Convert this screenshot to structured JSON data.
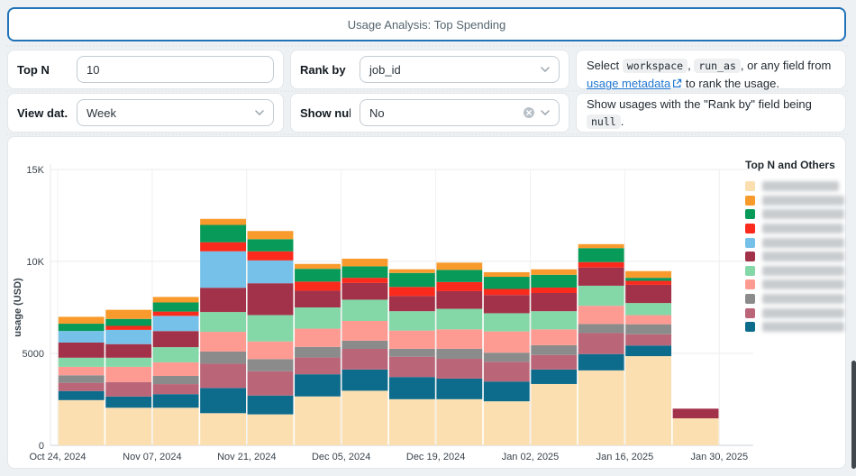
{
  "title": {
    "text": "Usage Analysis: Top Spending"
  },
  "colors": {
    "accent_border": "#2272b8",
    "link": "#2077d0",
    "code_chip_bg": "#edeff1"
  },
  "filters": {
    "top_n": {
      "label": "Top N",
      "value": "10"
    },
    "rank_by": {
      "label": "Rank by",
      "value": "job_id"
    },
    "view_date": {
      "label": "View dat...",
      "value": "Week"
    },
    "show_null": {
      "label": "Show null",
      "value": "No"
    }
  },
  "help_rank": {
    "text_before": "Select",
    "code1": "workspace",
    "comma": ",",
    "code2": "run_as",
    "text_mid": ", or any field from",
    "link": "usage metadata",
    "text_after": "to rank the usage."
  },
  "help_null": {
    "text_before": "Show usages with the \"Rank by\" field being",
    "code": "null",
    "text_after": "."
  },
  "chart_data": {
    "type": "bar",
    "stacked": true,
    "ylabel": "usage (USD)",
    "xlabel": "",
    "ylim": [
      0,
      15000
    ],
    "grid": true,
    "y_ticks": [
      {
        "value": 0,
        "label": "0"
      },
      {
        "value": 5000,
        "label": "5000"
      },
      {
        "value": 10000,
        "label": "10K"
      },
      {
        "value": 15000,
        "label": "15K"
      }
    ],
    "x_tick_labels": [
      "Oct 24, 2024",
      "Nov 07, 2024",
      "Nov 21, 2024",
      "Dec 05, 2024",
      "Dec 19, 2024",
      "Jan 02, 2025",
      "Jan 16, 2025",
      "Jan 30, 2025"
    ],
    "categories": [
      "Oct 24, 2024",
      "Oct 31, 2024",
      "Nov 07, 2024",
      "Nov 14, 2024",
      "Nov 21, 2024",
      "Nov 28, 2024",
      "Dec 05, 2024",
      "Dec 12, 2024",
      "Dec 19, 2024",
      "Dec 26, 2024",
      "Jan 02, 2025",
      "Jan 09, 2025",
      "Jan 16, 2025",
      "Jan 23, 2025"
    ],
    "legend": {
      "title": "Top N and Others",
      "position": "right",
      "labels_redacted": true
    },
    "series": [
      {
        "label_visible": false,
        "color": "#FBDFB1",
        "blur_width": 85,
        "values": [
          2460,
          2045,
          2045,
          1750,
          1685,
          2660,
          2970,
          2510,
          2510,
          2395,
          3335,
          4075,
          4850,
          1470
        ]
      },
      {
        "label_visible": false,
        "color": "#F89B2C",
        "blur_width": 97,
        "values": [
          375,
          495,
          300,
          330,
          445,
          265,
          415,
          200,
          395,
          250,
          295,
          215,
          365,
          0
        ]
      },
      {
        "label_visible": false,
        "color": "#089A58",
        "blur_width": 107,
        "values": [
          395,
          380,
          495,
          940,
          660,
          695,
          625,
          760,
          660,
          660,
          695,
          760,
          165,
          0
        ]
      },
      {
        "label_visible": false,
        "color": "#FA2B1C",
        "blur_width": 90,
        "values": [
          0,
          215,
          235,
          495,
          495,
          495,
          280,
          495,
          495,
          330,
          295,
          295,
          215,
          0
        ]
      },
      {
        "label_visible": false,
        "color": "#76C1E9",
        "blur_width": 98,
        "values": [
          630,
          775,
          825,
          1980,
          1240,
          0,
          0,
          0,
          0,
          0,
          0,
          0,
          0,
          0
        ]
      },
      {
        "label_visible": false,
        "color": "#A23249",
        "blur_width": 103,
        "values": [
          825,
          740,
          875,
          1320,
          1730,
          910,
          910,
          825,
          960,
          990,
          990,
          990,
          990,
          525
        ]
      },
      {
        "label_visible": false,
        "color": "#84D7A6",
        "blur_width": 97,
        "values": [
          495,
          495,
          825,
          1075,
          1435,
          1155,
          1155,
          1055,
          1120,
          990,
          990,
          1090,
          660,
          0
        ]
      },
      {
        "label_visible": false,
        "color": "#FD9B93",
        "blur_width": 92,
        "values": [
          460,
          825,
          740,
          1075,
          960,
          990,
          1075,
          990,
          1055,
          1155,
          860,
          990,
          495,
          0
        ]
      },
      {
        "label_visible": false,
        "color": "#8B8B8B",
        "blur_width": 100,
        "values": [
          410,
          0,
          445,
          660,
          660,
          580,
          445,
          430,
          545,
          495,
          530,
          495,
          545,
          0
        ]
      },
      {
        "label_visible": false,
        "color": "#BB6579",
        "blur_width": 93,
        "values": [
          445,
          790,
          545,
          1320,
          1320,
          910,
          1120,
          1105,
          1075,
          1075,
          790,
          1140,
          610,
          0
        ]
      },
      {
        "label_visible": false,
        "color": "#0D6C8C",
        "blur_width": 102,
        "values": [
          495,
          610,
          740,
          1370,
          1025,
          1205,
          1155,
          1205,
          1120,
          1075,
          790,
          890,
          580,
          0
        ]
      }
    ],
    "stack_order_bottom_to_top": [
      0,
      10,
      9,
      8,
      7,
      6,
      5,
      4,
      3,
      2,
      1
    ]
  }
}
